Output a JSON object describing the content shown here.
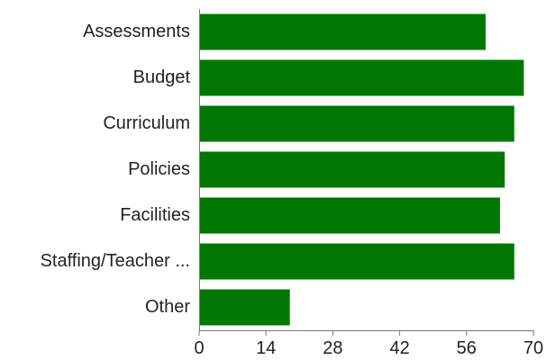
{
  "chart_data": {
    "type": "bar",
    "orientation": "horizontal",
    "categories": [
      "Assessments",
      "Budget",
      "Curriculum",
      "Policies",
      "Facilities",
      "Staffing/Teacher ...",
      "Other"
    ],
    "values": [
      60,
      68,
      66,
      64,
      63,
      66,
      19
    ],
    "xticks": [
      0,
      14,
      28,
      42,
      56,
      70
    ],
    "xlim": [
      0,
      70
    ],
    "bar_color": "#007700",
    "grid": false,
    "legend": "none"
  }
}
